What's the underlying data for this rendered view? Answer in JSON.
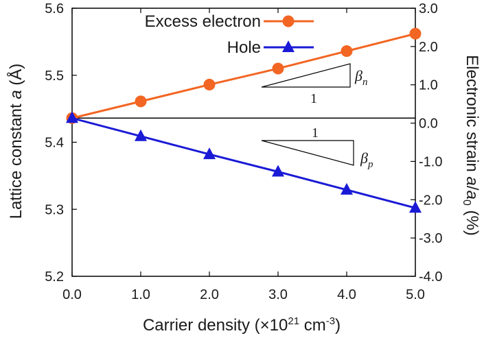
{
  "chart_data": {
    "type": "line",
    "x": [
      0.0,
      1.0,
      2.0,
      3.0,
      4.0,
      5.0
    ],
    "xlim": [
      0.0,
      5.0
    ],
    "xticks": [
      "0.0",
      "1.0",
      "2.0",
      "3.0",
      "4.0",
      "5.0"
    ],
    "xlabel": {
      "main": "Carrier density (×10",
      "sup1": "21",
      "mid": " cm",
      "sup2": "-3",
      "end": ")"
    },
    "left_axis": {
      "lim": [
        5.2,
        5.6
      ],
      "ticks": [
        "5.2",
        "5.3",
        "5.4",
        "5.5",
        "5.6"
      ],
      "label_prefix": "Lattice constant ",
      "label_var": "a",
      "label_suffix": " (Å)"
    },
    "right_axis": {
      "lim": [
        -4.0,
        3.0
      ],
      "ticks": [
        "3.0",
        "2.0",
        "1.0",
        "0.0",
        "-1.0",
        "-2.0",
        "-3.0",
        "-4.0"
      ],
      "label_prefix": "Electronic strain ",
      "label_var": "a",
      "label_slash": "/",
      "label_var2": "a",
      "label_sub": "0",
      "label_suffix": " (%)"
    },
    "series": [
      {
        "name": "Excess electron",
        "color": "#f26522",
        "marker": "circle",
        "values": [
          5.436,
          5.461,
          5.486,
          5.51,
          5.536,
          5.562
        ]
      },
      {
        "name": "Hole",
        "color": "#1a1ad6",
        "marker": "triangle",
        "values": [
          5.436,
          5.409,
          5.382,
          5.356,
          5.329,
          5.302
        ]
      }
    ],
    "reference_line": {
      "value": 5.436,
      "color": "#000000"
    },
    "annotations": {
      "beta_n": {
        "symbol": "β",
        "subscript": "n",
        "run_label": "1"
      },
      "beta_p": {
        "symbol": "β",
        "subscript": "p",
        "run_label": "1"
      }
    }
  }
}
